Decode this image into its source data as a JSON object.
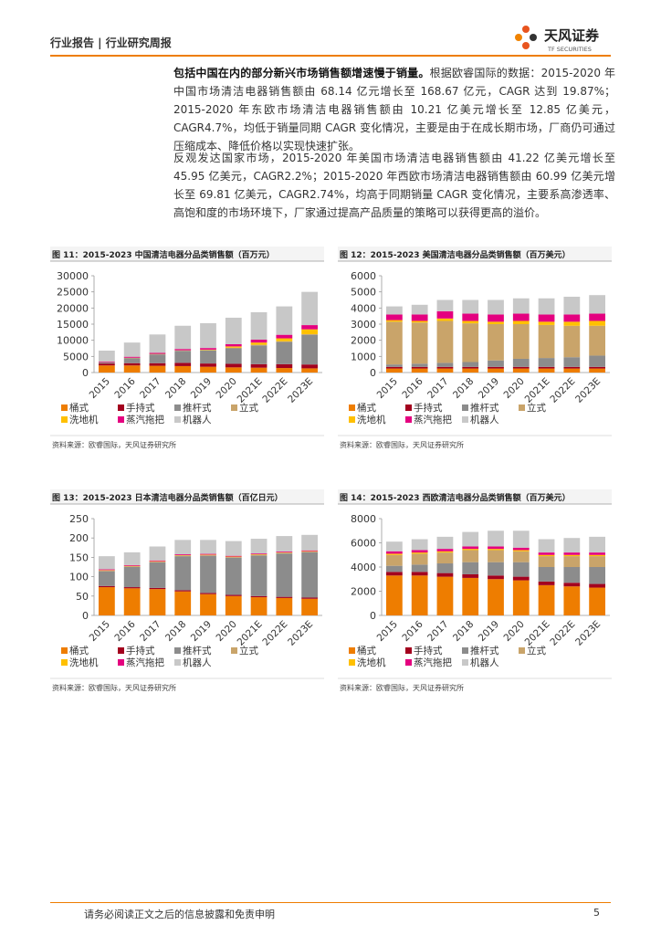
{
  "header": {
    "left": "行业报告 | 行业研究周报",
    "logo_cn": "天风证券",
    "logo_en": "TF SECURITIES"
  },
  "paragraphs": [
    {
      "bold": "包括中国在内的部分新兴市场销售额增速慢于销量。",
      "text": "根据欧睿国际的数据：2015-2020 年中国市场清洁电器销售额由 68.14 亿元增长至 168.67 亿元，CAGR 达到 19.87%；2015-2020 年东欧市场清洁电器销售额由 10.21 亿美元增长至 12.85 亿美元，CAGR4.7%，均低于销量同期 CAGR 变化情况，主要是由于在成长期市场，厂商仍可通过压缩成本、降低价格以实现快速扩张。"
    },
    {
      "bold": "",
      "text": "反观发达国家市场，2015-2020 年美国市场清洁电器销售额由 41.22 亿美元增长至 45.95 亿美元，CAGR2.2%；2015-2020 年西欧市场清洁电器销售额由 60.99 亿美元增长至 69.81 亿美元，CAGR2.74%，均高于同期销量 CAGR 变化情况，主要系高渗透率、高饱和度的市场环境下，厂家通过提高产品质量的策略可以获得更高的溢价。"
    }
  ],
  "chart_data": [
    {
      "type": "stacked-bar",
      "title": "图 11：2015-2023 中国清洁电器分品类销售额（百万元）",
      "source": "资料来源：欧睿国际，天风证券研究所",
      "categories": [
        "2015",
        "2016",
        "2017",
        "2018",
        "2019",
        "2020",
        "2021E",
        "2022E",
        "2023E"
      ],
      "ylim": [
        0,
        30000
      ],
      "yticks": [
        0,
        5000,
        10000,
        15000,
        20000,
        25000,
        30000
      ],
      "series": [
        {
          "name": "桶式",
          "color": "#ee7d00",
          "values": [
            2200,
            2200,
            2100,
            2000,
            1800,
            1600,
            1500,
            1400,
            1300
          ]
        },
        {
          "name": "手持式",
          "color": "#a3001e",
          "values": [
            600,
            700,
            800,
            1000,
            1000,
            1100,
            1100,
            1200,
            1200
          ]
        },
        {
          "name": "推杆式",
          "color": "#8c8c8c",
          "values": [
            300,
            1500,
            2700,
            3700,
            4000,
            4800,
            5800,
            6900,
            9200
          ]
        },
        {
          "name": "立式",
          "color": "#c9a46a",
          "values": [
            100,
            200,
            200,
            200,
            200,
            200,
            200,
            200,
            200
          ]
        },
        {
          "name": "洗地机",
          "color": "#ffc000",
          "values": [
            0,
            0,
            0,
            0,
            100,
            400,
            700,
            900,
            1500
          ]
        },
        {
          "name": "蒸汽拖把",
          "color": "#e4007f",
          "values": [
            200,
            300,
            300,
            400,
            500,
            700,
            900,
            1100,
            1300
          ]
        },
        {
          "name": "机器人",
          "color": "#c8c8c8",
          "values": [
            3400,
            4400,
            5700,
            7200,
            7700,
            8200,
            8500,
            8800,
            10300
          ]
        }
      ]
    },
    {
      "type": "stacked-bar",
      "title": "图 12：2015-2023 美国清洁电器分品类销售额（百万美元）",
      "source": "资料来源：欧睿国际，天风证券研究所",
      "categories": [
        "2015",
        "2016",
        "2017",
        "2018",
        "2019",
        "2020",
        "2021E",
        "2022E",
        "2023E"
      ],
      "ylim": [
        0,
        6000
      ],
      "yticks": [
        0,
        1000,
        2000,
        3000,
        4000,
        5000,
        6000
      ],
      "series": [
        {
          "name": "桶式",
          "color": "#ee7d00",
          "values": [
            250,
            250,
            250,
            250,
            250,
            250,
            250,
            250,
            250
          ]
        },
        {
          "name": "手持式",
          "color": "#a3001e",
          "values": [
            100,
            100,
            100,
            100,
            100,
            100,
            100,
            100,
            100
          ]
        },
        {
          "name": "推杆式",
          "color": "#8c8c8c",
          "values": [
            150,
            200,
            250,
            300,
            400,
            500,
            550,
            600,
            700
          ]
        },
        {
          "name": "立式",
          "color": "#c9a46a",
          "values": [
            2650,
            2550,
            2600,
            2400,
            2250,
            2150,
            2050,
            1950,
            1850
          ]
        },
        {
          "name": "洗地机",
          "color": "#ffc000",
          "values": [
            100,
            100,
            150,
            150,
            150,
            200,
            200,
            250,
            300
          ]
        },
        {
          "name": "蒸汽拖把",
          "color": "#e4007f",
          "values": [
            350,
            400,
            450,
            450,
            450,
            450,
            450,
            450,
            450
          ]
        },
        {
          "name": "机器人",
          "color": "#c8c8c8",
          "values": [
            500,
            600,
            700,
            850,
            900,
            950,
            1000,
            1100,
            1150
          ]
        }
      ]
    },
    {
      "type": "stacked-bar",
      "title": "图 13：2015-2023 日本清洁电器分品类销售额（百亿日元）",
      "source": "资料来源：欧睿国际，天风证券研究所",
      "categories": [
        "2015",
        "2016",
        "2017",
        "2018",
        "2019",
        "2020",
        "2021E",
        "2022E",
        "2023E"
      ],
      "ylim": [
        0,
        250
      ],
      "yticks": [
        0,
        50,
        100,
        150,
        200,
        250
      ],
      "series": [
        {
          "name": "桶式",
          "color": "#ee7d00",
          "values": [
            73,
            70,
            68,
            62,
            55,
            50,
            47,
            45,
            43
          ]
        },
        {
          "name": "手持式",
          "color": "#a3001e",
          "values": [
            3,
            3,
            3,
            3,
            3,
            3,
            3,
            3,
            3
          ]
        },
        {
          "name": "推杆式",
          "color": "#8c8c8c",
          "values": [
            38,
            52,
            66,
            88,
            96,
            96,
            105,
            112,
            117
          ]
        },
        {
          "name": "立式",
          "color": "#c9a46a",
          "values": [
            2,
            2,
            2,
            2,
            2,
            2,
            2,
            2,
            2
          ]
        },
        {
          "name": "洗地机",
          "color": "#ffc000",
          "values": [
            1,
            1,
            1,
            1,
            1,
            1,
            1,
            1,
            1
          ]
        },
        {
          "name": "蒸汽拖把",
          "color": "#e4007f",
          "values": [
            2,
            2,
            2,
            2,
            2,
            2,
            2,
            2,
            2
          ]
        },
        {
          "name": "机器人",
          "color": "#c8c8c8",
          "values": [
            34,
            33,
            36,
            37,
            36,
            38,
            38,
            40,
            40
          ]
        }
      ]
    },
    {
      "type": "stacked-bar",
      "title": "图 14：2015-2023 西欧清洁电器分品类销售额（百万美元）",
      "source": "资料来源：欧睿国际，天风证券研究所",
      "categories": [
        "2015",
        "2016",
        "2017",
        "2018",
        "2019",
        "2020",
        "2021E",
        "2022E",
        "2023E"
      ],
      "ylim": [
        0,
        8000
      ],
      "yticks": [
        0,
        2000,
        4000,
        6000,
        8000
      ],
      "series": [
        {
          "name": "桶式",
          "color": "#ee7d00",
          "values": [
            3300,
            3300,
            3200,
            3100,
            3000,
            2900,
            2500,
            2400,
            2300
          ]
        },
        {
          "name": "手持式",
          "color": "#a3001e",
          "values": [
            300,
            300,
            300,
            300,
            300,
            300,
            300,
            300,
            300
          ]
        },
        {
          "name": "推杆式",
          "color": "#8c8c8c",
          "values": [
            500,
            600,
            800,
            1000,
            1100,
            1200,
            1200,
            1300,
            1400
          ]
        },
        {
          "name": "立式",
          "color": "#c9a46a",
          "values": [
            900,
            900,
            900,
            1000,
            1000,
            900,
            900,
            900,
            900
          ]
        },
        {
          "name": "洗地机",
          "color": "#ffc000",
          "values": [
            100,
            100,
            100,
            100,
            100,
            100,
            100,
            100,
            100
          ]
        },
        {
          "name": "蒸汽拖把",
          "color": "#e4007f",
          "values": [
            200,
            200,
            200,
            200,
            200,
            200,
            200,
            200,
            200
          ]
        },
        {
          "name": "机器人",
          "color": "#c8c8c8",
          "values": [
            800,
            900,
            1000,
            1200,
            1300,
            1400,
            1100,
            1200,
            1300
          ]
        }
      ]
    }
  ],
  "footer": {
    "disclaimer": "请务必阅读正文之后的信息披露和免责申明",
    "page": 5
  }
}
